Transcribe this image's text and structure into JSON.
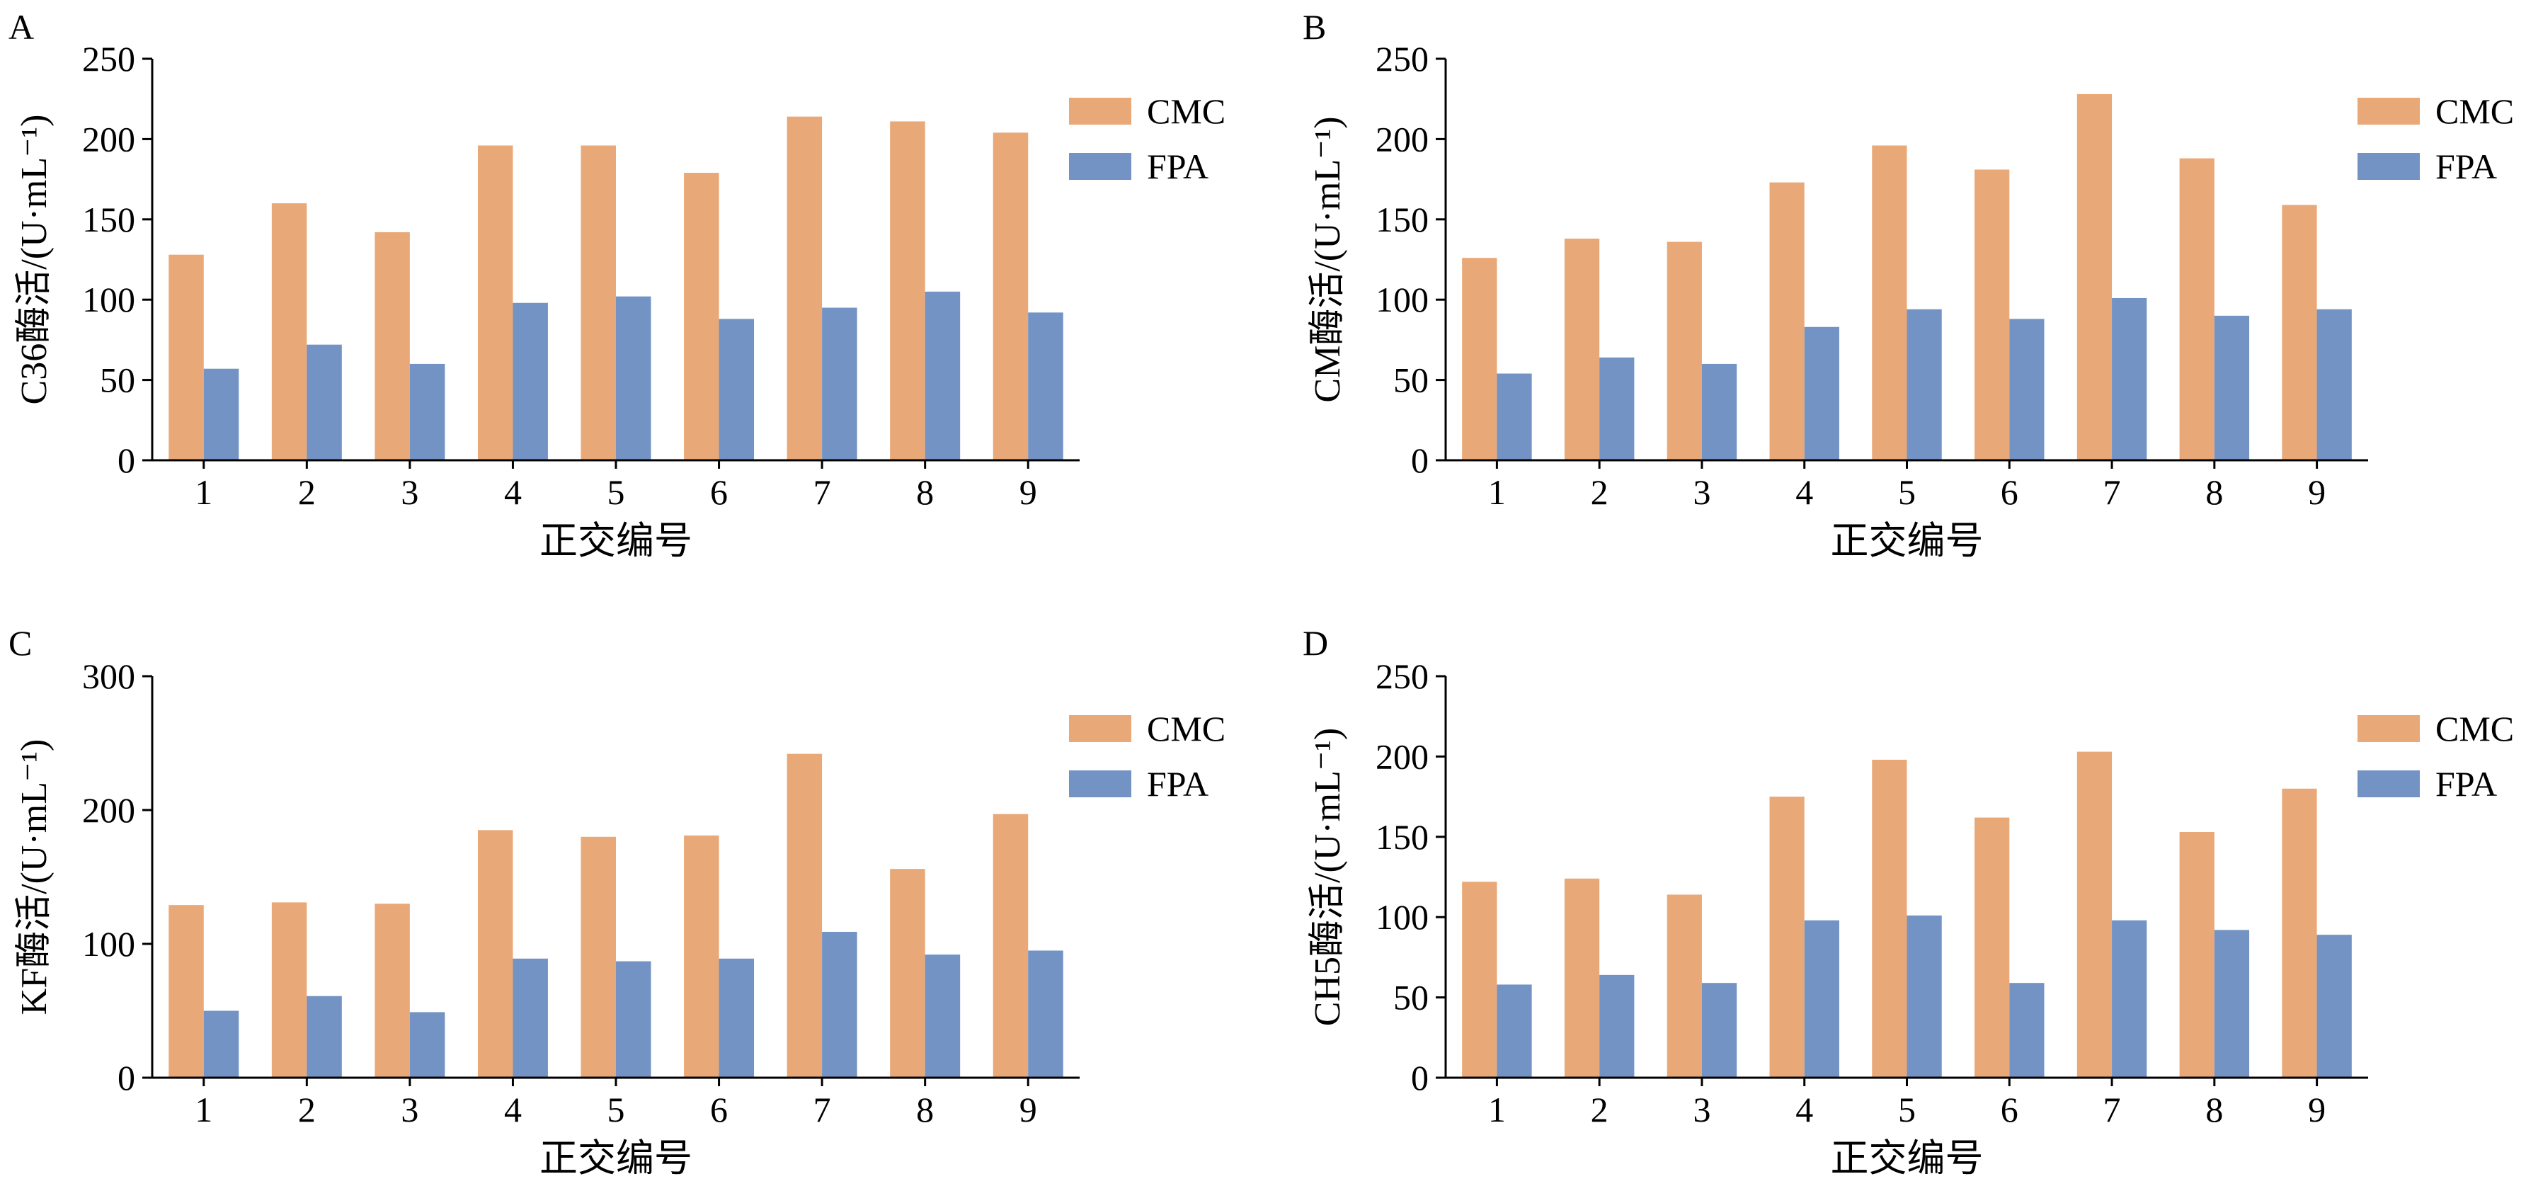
{
  "colors": {
    "cmc": "#E9A877",
    "fpa": "#7293C4"
  },
  "chart_data": [
    {
      "panel": "A",
      "type": "bar",
      "categories": [
        "1",
        "2",
        "3",
        "4",
        "5",
        "6",
        "7",
        "8",
        "9"
      ],
      "series": [
        {
          "name": "CMC",
          "values": [
            128,
            160,
            142,
            196,
            196,
            179,
            214,
            211,
            204
          ]
        },
        {
          "name": "FPA",
          "values": [
            57,
            72,
            60,
            98,
            102,
            88,
            95,
            105,
            92
          ]
        }
      ],
      "xlabel": "正交编号",
      "ylabel": "C36酶活/(U·mL⁻¹)",
      "ylim": [
        0,
        250
      ],
      "yticks": [
        "0",
        "50",
        "100",
        "150",
        "200",
        "250"
      ],
      "legend": "right"
    },
    {
      "panel": "B",
      "type": "bar",
      "categories": [
        "1",
        "2",
        "3",
        "4",
        "5",
        "6",
        "7",
        "8",
        "9"
      ],
      "series": [
        {
          "name": "CMC",
          "values": [
            126,
            138,
            136,
            173,
            196,
            181,
            228,
            188,
            159
          ]
        },
        {
          "name": "FPA",
          "values": [
            54,
            64,
            60,
            83,
            94,
            88,
            101,
            90,
            94
          ]
        }
      ],
      "xlabel": "正交编号",
      "ylabel": "CM酶活/(U·mL⁻¹)",
      "ylim": [
        0,
        250
      ],
      "yticks": [
        "0",
        "50",
        "100",
        "150",
        "200",
        "250"
      ],
      "legend": "right"
    },
    {
      "panel": "C",
      "type": "bar",
      "categories": [
        "1",
        "2",
        "3",
        "4",
        "5",
        "6",
        "7",
        "8",
        "9"
      ],
      "series": [
        {
          "name": "CMC",
          "values": [
            129,
            131,
            130,
            185,
            180,
            181,
            242,
            156,
            197
          ]
        },
        {
          "name": "FPA",
          "values": [
            50,
            61,
            49,
            89,
            87,
            89,
            109,
            92,
            95
          ]
        }
      ],
      "xlabel": "正交编号",
      "ylabel": "KF酶活/(U·mL⁻¹)",
      "ylim": [
        0,
        300
      ],
      "yticks": [
        "0",
        "100",
        "200",
        "300"
      ],
      "legend": "right"
    },
    {
      "panel": "D",
      "type": "bar",
      "categories": [
        "1",
        "2",
        "3",
        "4",
        "5",
        "6",
        "7",
        "8",
        "9"
      ],
      "series": [
        {
          "name": "CMC",
          "values": [
            122,
            124,
            114,
            175,
            198,
            162,
            203,
            153,
            180
          ]
        },
        {
          "name": "FPA",
          "values": [
            58,
            64,
            59,
            98,
            101,
            59,
            98,
            92,
            89
          ]
        }
      ],
      "xlabel": "正交编号",
      "ylabel": "CH5酶活/(U·mL⁻¹)",
      "ylim": [
        0,
        250
      ],
      "yticks": [
        "0",
        "50",
        "100",
        "150",
        "200",
        "250"
      ],
      "legend": "right"
    }
  ]
}
